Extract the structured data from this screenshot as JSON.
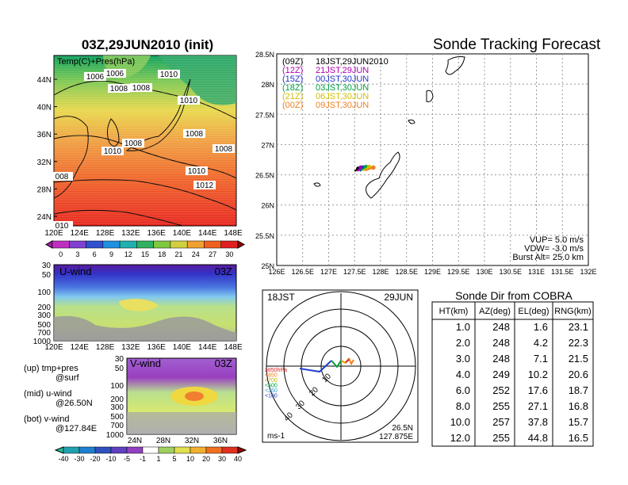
{
  "left_title": "03Z,29JUN2010 (init)",
  "right_title": "Sonde Tracking Forecast",
  "temp_map": {
    "label": "Temp(C)+Pres(hPa)",
    "lat_ticks": [
      "24N",
      "28N",
      "32N",
      "36N",
      "40N",
      "44N"
    ],
    "lon_ticks": [
      "120E",
      "124E",
      "128E",
      "132E",
      "136E",
      "140E",
      "144E",
      "148E"
    ],
    "contour_labels": [
      "1006",
      "1006",
      "1008",
      "1008",
      "1010",
      "1010",
      "1008",
      "1008",
      "1010",
      "1008",
      "1010",
      "1012",
      "008",
      "010"
    ],
    "colorbar_ticks": [
      "0",
      "3",
      "6",
      "9",
      "12",
      "15",
      "18",
      "21",
      "24",
      "27",
      "30"
    ]
  },
  "uwind_panel": {
    "label": "U-wind",
    "time": "03Z",
    "p_ticks": [
      "30",
      "50",
      "100",
      "200",
      "300",
      "500",
      "700",
      "1000"
    ],
    "lon_ticks": [
      "120E",
      "124E",
      "128E",
      "132E",
      "136E",
      "140E",
      "144E",
      "148E"
    ]
  },
  "vwind_panel": {
    "label": "V-wind",
    "time": "03Z",
    "p_ticks": [
      "30",
      "50",
      "100",
      "200",
      "300",
      "500",
      "700",
      "1000"
    ],
    "lat_ticks": [
      "24N",
      "28N",
      "32N",
      "36N"
    ]
  },
  "notes": {
    "up1": "(up) tmp+pres",
    "up2": "@surf",
    "mid1": "(mid) u-wind",
    "mid2": "@26.50N",
    "bot1": "(bot) v-wind",
    "bot2": "@127.84E"
  },
  "wind_colorbar_ticks": [
    "-40",
    "-30",
    "-20",
    "-10",
    "-5",
    "-1",
    "1",
    "5",
    "10",
    "20",
    "30",
    "40"
  ],
  "track_map": {
    "lat_ticks": [
      "25N",
      "25.5N",
      "26N",
      "26.5N",
      "27N",
      "27.5N",
      "28N",
      "28.5N"
    ],
    "lon_ticks": [
      "126E",
      "126.5E",
      "127E",
      "127.5E",
      "128E",
      "128.5E",
      "129E",
      "129.5E",
      "130E",
      "130.5E",
      "131E",
      "131.5E",
      "132E"
    ],
    "legend": [
      {
        "tag": "(09Z)",
        "text": "18JST,29JUN2010",
        "color": "#000000"
      },
      {
        "tag": "(12Z)",
        "text": "21JST,29JUN",
        "color": "#b000b0"
      },
      {
        "tag": "(15Z)",
        "text": "00JST,30JUN",
        "color": "#2233cc"
      },
      {
        "tag": "(18Z)",
        "text": "03JST,30JUN",
        "color": "#00a040"
      },
      {
        "tag": "(21Z)",
        "text": "06JST,30JUN",
        "color": "#d0c000"
      },
      {
        "tag": "(00Z)",
        "text": "09JST,30JUN",
        "color": "#f08020"
      }
    ],
    "vup": "VUP= 5.0 m/s",
    "vdw": "VDW= -3.0 m/s",
    "burst": "Burst Alt= 25.0 km"
  },
  "polar": {
    "time_label": "18JST",
    "date_label": "29JUN",
    "unit_label": "ms-1",
    "loc1": "26.5N",
    "loc2": "127.875E",
    "ring_labels": [
      "10",
      "20",
      "30",
      "40"
    ],
    "legend": [
      {
        "text": "≥850hPa",
        "color": "#e02020"
      },
      {
        "text": "<850",
        "color": "#f08020"
      },
      {
        "text": "<700",
        "color": "#c0b000"
      },
      {
        "text": "<500",
        "color": "#00a040"
      },
      {
        "text": "<250",
        "color": "#20a0d0"
      },
      {
        "text": "<100",
        "color": "#2040d0"
      }
    ]
  },
  "table": {
    "title": "Sonde Dir from COBRA",
    "headers": [
      "HT(km)",
      "AZ(deg)",
      "EL(deg)",
      "RNG(km)"
    ],
    "rows": [
      [
        "1.0",
        "248",
        "1.6",
        "23.1"
      ],
      [
        "2.0",
        "248",
        "4.2",
        "22.3"
      ],
      [
        "3.0",
        "248",
        "7.1",
        "21.5"
      ],
      [
        "4.0",
        "249",
        "10.2",
        "20.6"
      ],
      [
        "6.0",
        "252",
        "17.6",
        "18.7"
      ],
      [
        "8.0",
        "255",
        "27.1",
        "16.8"
      ],
      [
        "10.0",
        "257",
        "37.8",
        "15.7"
      ],
      [
        "12.0",
        "255",
        "44.8",
        "16.5"
      ]
    ]
  },
  "chart_data": [
    {
      "type": "scatter",
      "title": "Sonde Tracking Forecast",
      "xlabel": "",
      "ylabel": "",
      "xlim": [
        126,
        132
      ],
      "ylim": [
        25,
        28.5
      ],
      "series": [
        {
          "name": "(09Z) 18JST,29JUN2010",
          "x": [
            127.5,
            127.57
          ],
          "y": [
            26.56,
            26.6
          ]
        },
        {
          "name": "(12Z) 21JST,29JUN",
          "x": [
            127.55,
            127.62
          ],
          "y": [
            26.56,
            26.62
          ]
        },
        {
          "name": "(15Z) 00JST,30JUN",
          "x": [
            127.6,
            127.67
          ],
          "y": [
            26.56,
            26.62
          ]
        },
        {
          "name": "(18Z) 03JST,30JUN",
          "x": [
            127.62,
            127.72
          ],
          "y": [
            26.57,
            26.63
          ]
        },
        {
          "name": "(21Z) 06JST,30JUN",
          "x": [
            127.66,
            127.78
          ],
          "y": [
            26.57,
            26.63
          ]
        },
        {
          "name": "(00Z) 09JST,30JUN",
          "x": [
            127.7,
            127.86
          ],
          "y": [
            26.57,
            26.62
          ]
        }
      ]
    },
    {
      "type": "table",
      "title": "Sonde Dir from COBRA",
      "columns": [
        "HT(km)",
        "AZ(deg)",
        "EL(deg)",
        "RNG(km)"
      ],
      "rows": [
        [
          1.0,
          248,
          1.6,
          23.1
        ],
        [
          2.0,
          248,
          4.2,
          22.3
        ],
        [
          3.0,
          248,
          7.1,
          21.5
        ],
        [
          4.0,
          249,
          10.2,
          20.6
        ],
        [
          6.0,
          252,
          17.6,
          18.7
        ],
        [
          8.0,
          255,
          27.1,
          16.8
        ],
        [
          10.0,
          257,
          37.8,
          15.7
        ],
        [
          12.0,
          255,
          44.8,
          16.5
        ]
      ]
    }
  ]
}
